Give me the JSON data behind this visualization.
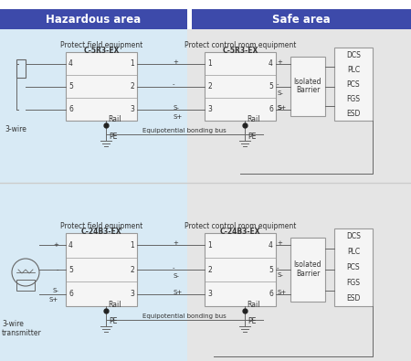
{
  "header_hazardous": "Hazardous area",
  "header_safe": "Safe area",
  "header_color": "#3d4aaa",
  "header_text_color": "#ffffff",
  "bg_hazardous": "#d8eaf5",
  "bg_safe": "#e5e5e5",
  "box_edge": "#999999",
  "box_fill": "#f5f5f5",
  "line_color": "#666666",
  "text_color": "#333333",
  "divider_color": "#cccccc",
  "top": {
    "field_label": "Protect field equipment",
    "field_model": "C-5R3-EX",
    "ctrl_label": "Protect control room equipment",
    "ctrl_model": "C-5R3-EX",
    "field_pins_left": [
      "4",
      "5",
      "6"
    ],
    "field_pins_right": [
      "1",
      "2",
      "3"
    ],
    "ctrl_pins_left": [
      "1",
      "2",
      "3"
    ],
    "ctrl_pins_right": [
      "4",
      "5",
      "6"
    ],
    "mid_signals": [
      "+",
      "-",
      "S-",
      "S+"
    ],
    "right_signals": [
      "+",
      "-",
      "S-",
      "S+"
    ],
    "dcs_labels": [
      "DCS",
      "PLC",
      "PCS",
      "FGS",
      "ESD"
    ],
    "barrier_label": [
      "Isolated",
      "Barrier"
    ],
    "wire_label": "3-wire",
    "rail_label": "Rail",
    "pe_label": "PE",
    "eq_label": "Equipotential bonding bus"
  },
  "bot": {
    "field_label": "Protect field equipment",
    "field_model": "C-24B3-EX",
    "ctrl_label": "Protect control room equipment",
    "ctrl_model": "C-24B3-EX",
    "field_pins_left": [
      "4",
      "5",
      "6"
    ],
    "field_pins_right": [
      "1",
      "2",
      "3"
    ],
    "ctrl_pins_left": [
      "1",
      "2",
      "3"
    ],
    "ctrl_pins_right": [
      "4",
      "5",
      "6"
    ],
    "mid_signals": [
      "+",
      "-",
      "S-",
      "S+"
    ],
    "right_signals": [
      "+",
      "-",
      "S-",
      "S+"
    ],
    "dcs_labels": [
      "DCS",
      "PLC",
      "PCS",
      "FGS",
      "ESD"
    ],
    "barrier_label": [
      "Isolated",
      "Barrier"
    ],
    "wire_label": "3-wire\ntransmitter",
    "rail_label": "Rail",
    "pe_label": "PE",
    "eq_label": "Equipotential bonding bus"
  }
}
